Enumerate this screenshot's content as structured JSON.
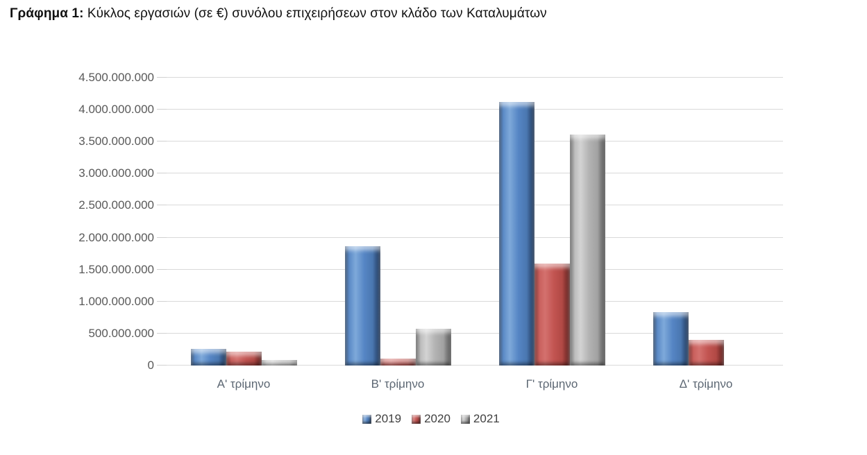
{
  "title": {
    "prefix": "Γράφημα 1:",
    "rest": " Κύκλος εργασιών (σε €) συνόλου επιχειρήσεων στον κλάδο των Καταλυμάτων"
  },
  "chart_data": {
    "type": "bar",
    "title": "Κύκλος εργασιών (σε €) συνόλου επιχειρήσεων στον κλάδο των Καταλυμάτων",
    "categories": [
      "Α' τρίμηνο",
      "Β' τρίμηνο",
      "Γ' τρίμηνο",
      "Δ' τρίμηνο"
    ],
    "series": [
      {
        "name": "2019",
        "color": "#4F81BD",
        "values": [
          260000000,
          1860000000,
          4120000000,
          830000000
        ]
      },
      {
        "name": "2020",
        "color": "#C0504D",
        "values": [
          220000000,
          110000000,
          1590000000,
          400000000
        ]
      },
      {
        "name": "2021",
        "color": "#A6A6A6",
        "values": [
          90000000,
          575000000,
          3610000000,
          0
        ]
      }
    ],
    "ylim": [
      0,
      4500000000
    ],
    "ytick_step": 500000000,
    "ytick_labels": [
      "0",
      "500.000.000",
      "1.000.000.000",
      "1.500.000.000",
      "2.000.000.000",
      "2.500.000.000",
      "3.000.000.000",
      "3.500.000.000",
      "4.000.000.000",
      "4.500.000.000"
    ],
    "grid": true,
    "legend_position": "bottom",
    "grid_color": "#D9D9D9",
    "axis_label_color": "#595959",
    "category_label_color": "#5B6672",
    "legend_text_color": "#404040"
  }
}
